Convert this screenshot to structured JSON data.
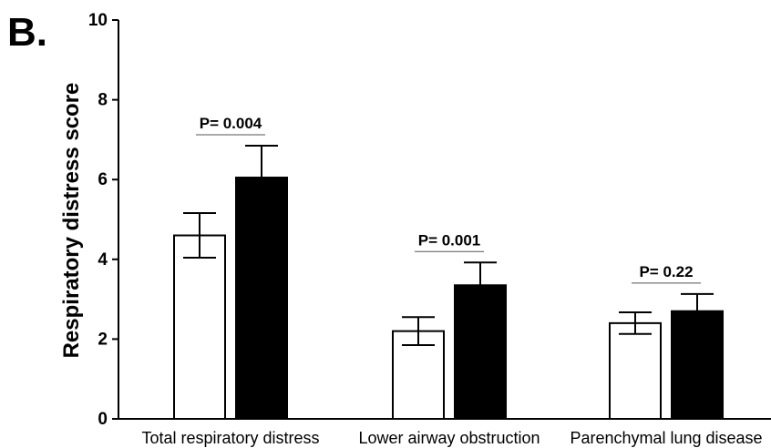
{
  "panel_label": "B.",
  "chart_data": {
    "type": "bar",
    "categories": [
      "Total respiratory distress",
      "Lower airway obstruction",
      "Parenchymal lung disease"
    ],
    "series": [
      {
        "fill": "#ffffff",
        "values": [
          4.6,
          2.2,
          2.4
        ],
        "errors": [
          0.56,
          0.35,
          0.27
        ]
      },
      {
        "fill": "#000000",
        "values": [
          6.05,
          3.35,
          2.7
        ],
        "errors": [
          0.8,
          0.57,
          0.43
        ]
      }
    ],
    "annotations": [
      "P= 0.004",
      "P= 0.001",
      "P= 0.22"
    ],
    "ylabel": "Respiratory distress score",
    "ylim": [
      0,
      10
    ],
    "yticks": [
      "0",
      "2",
      "4",
      "6",
      "8",
      "10"
    ],
    "grid": false
  }
}
